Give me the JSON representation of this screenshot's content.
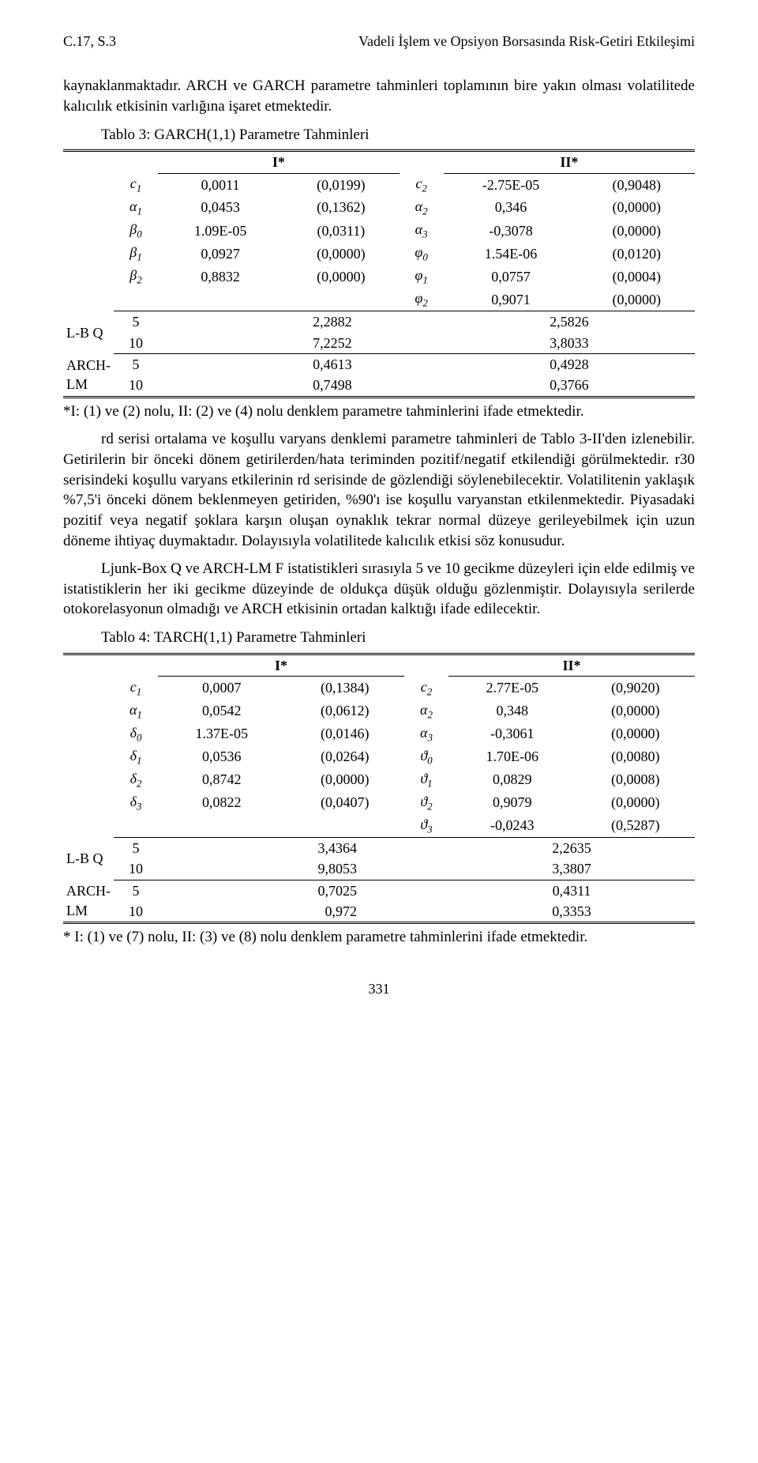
{
  "header": {
    "left": "C.17, S.3",
    "right": "Vadeli İşlem ve Opsiyon Borsasında Risk-Getiri Etkileşimi"
  },
  "p1": "kaynaklanmaktadır. ARCH ve GARCH parametre tahminleri toplamının bire yakın olması volatilitede kalıcılık etkisinin varlığına işaret etmektedir.",
  "t3_caption": "Tablo 3: GARCH(1,1) Parametre Tahminleri",
  "col_I": "I*",
  "col_II": "II*",
  "sym": {
    "c1": "c",
    "c1s": "1",
    "a1": "α",
    "a1s": "1",
    "b0": "β",
    "b0s": "0",
    "b1": "β",
    "b1s": "1",
    "b2": "β",
    "b2s": "2",
    "c2": "c",
    "c2s": "2",
    "a2": "α",
    "a2s": "2",
    "a3": "α",
    "a3s": "3",
    "ph0": "φ",
    "ph0s": "0",
    "ph1": "φ",
    "ph1s": "1",
    "ph2": "φ",
    "ph2s": "2",
    "d0": "δ",
    "d0s": "0",
    "d1": "δ",
    "d1s": "1",
    "d2": "δ",
    "d2s": "2",
    "d3": "δ",
    "d3s": "3",
    "th0": "ϑ",
    "th0s": "0",
    "th1": "ϑ",
    "th1s": "1",
    "th2": "ϑ",
    "th2s": "2",
    "th3": "ϑ",
    "th3s": "3"
  },
  "t3": {
    "r1": {
      "v1": "0,0011",
      "p1": "(0,0199)",
      "v2": "-2.75E-05",
      "p2": "(0,9048)"
    },
    "r2": {
      "v1": "0,0453",
      "p1": "(0,1362)",
      "v2": "0,346",
      "p2": "(0,0000)"
    },
    "r3": {
      "v1": "1.09E-05",
      "p1": "(0,0311)",
      "v2": "-0,3078",
      "p2": "(0,0000)"
    },
    "r4": {
      "v1": "0,0927",
      "p1": "(0,0000)",
      "v2": "1.54E-06",
      "p2": "(0,0120)"
    },
    "r5": {
      "v1": "0,8832",
      "p1": "(0,0000)",
      "v2": "0,0757",
      "p2": "(0,0004)"
    },
    "r6": {
      "v2": "0,9071",
      "p2": "(0,0000)"
    },
    "lbq_label": "L-B Q",
    "arch_label": "ARCH-LM",
    "g5": "5",
    "g10": "10",
    "lbq5_l": "2,2882",
    "lbq5_r": "2,5826",
    "lbq10_l": "7,2252",
    "lbq10_r": "3,8033",
    "arch5_l": "0,4613",
    "arch5_r": "0,4928",
    "arch10_l": "0,7498",
    "arch10_r": "0,3766"
  },
  "t3_note": "*I: (1) ve (2) nolu, II: (2) ve (4) nolu denklem parametre tahminlerini ifade etmektedir.",
  "p2": "rd serisi ortalama ve koşullu varyans denklemi parametre tahminleri de Tablo 3-II'den izlenebilir. Getirilerin bir önceki dönem getirilerden/hata teriminden pozitif/negatif etkilendiği görülmektedir. r30 serisindeki koşullu varyans etkilerinin rd serisinde de gözlendiği söylenebilecektir. Volatilitenin yaklaşık %7,5'i önceki dönem beklenmeyen getiriden, %90'ı ise koşullu varyanstan etkilenmektedir. Piyasadaki pozitif veya negatif şoklara karşın oluşan oynaklık tekrar normal düzeye gerileyebilmek için uzun döneme ihtiyaç duymaktadır. Dolayısıyla volatilitede kalıcılık etkisi söz konusudur.",
  "p3": "Ljunk-Box Q ve ARCH-LM F istatistikleri sırasıyla 5 ve 10 gecikme düzeyleri için elde edilmiş ve istatistiklerin her iki gecikme düzeyinde de oldukça düşük olduğu gözlenmiştir. Dolayısıyla serilerde otokorelasyonun olmadığı ve ARCH etkisinin ortadan kalktığı ifade edilecektir.",
  "t4_caption": "Tablo 4: TARCH(1,1) Parametre Tahminleri",
  "t4": {
    "r1": {
      "v1": "0,0007",
      "p1": "(0,1384)",
      "v2": "2.77E-05",
      "p2": "(0,9020)"
    },
    "r2": {
      "v1": "0,0542",
      "p1": "(0,0612)",
      "v2": "0,348",
      "p2": "(0,0000)"
    },
    "r3": {
      "v1": "1.37E-05",
      "p1": "(0,0146)",
      "v2": "-0,3061",
      "p2": "(0,0000)"
    },
    "r4": {
      "v1": "0,0536",
      "p1": "(0,0264)",
      "v2": "1.70E-06",
      "p2": "(0,0080)"
    },
    "r5": {
      "v1": "0,8742",
      "p1": "(0,0000)",
      "v2": "0,0829",
      "p2": "(0,0008)"
    },
    "r6": {
      "v1": "0,0822",
      "p1": "(0,0407)",
      "v2": "0,9079",
      "p2": "(0,0000)"
    },
    "r7": {
      "v2": "-0,0243",
      "p2": "(0,5287)"
    },
    "lbq_label": "L-B Q",
    "arch_label": "ARCH-LM",
    "g5": "5",
    "g10": "10",
    "lbq5_l": "3,4364",
    "lbq5_r": "2,2635",
    "lbq10_l": "9,8053",
    "lbq10_r": "3,3807",
    "arch5_l": "0,7025",
    "arch5_r": "0,4311",
    "arch10_l": "0,972",
    "arch10_r": "0,3353"
  },
  "t4_note": "* I: (1) ve (7) nolu, II: (3) ve (8) nolu denklem parametre tahminlerini ifade etmektedir.",
  "pageno": "331"
}
